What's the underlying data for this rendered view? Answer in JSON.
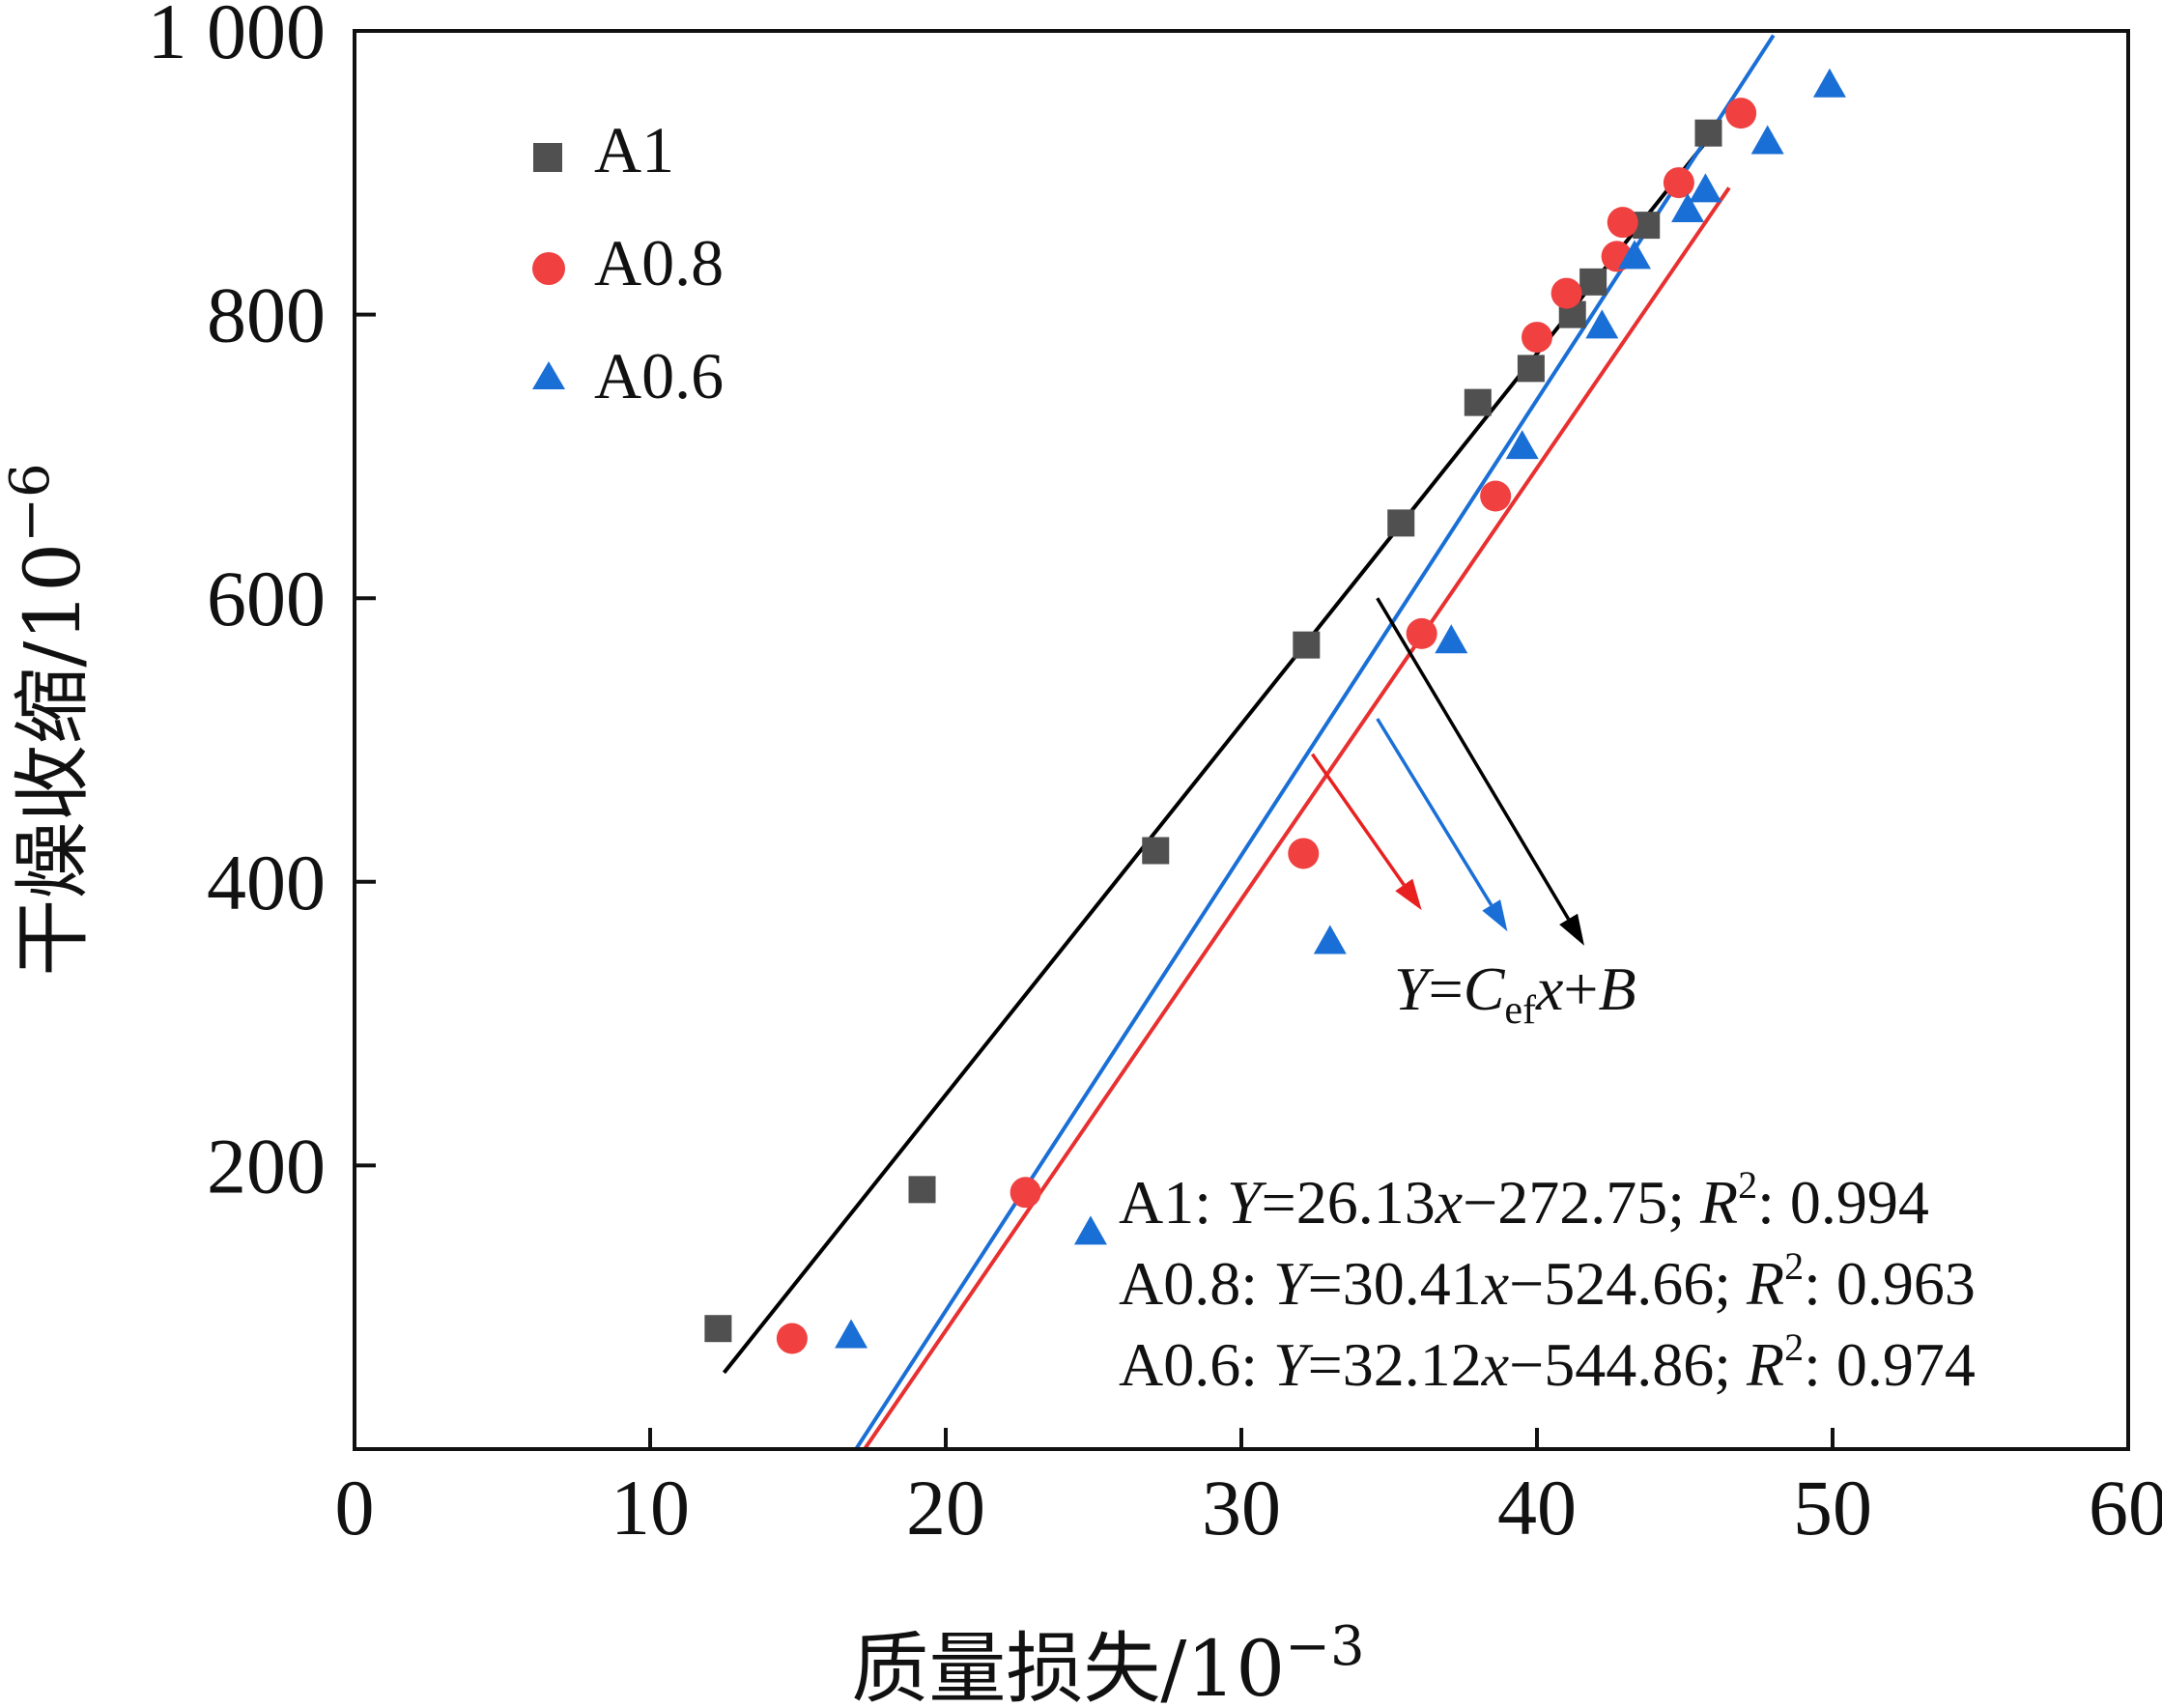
{
  "chart_data": {
    "type": "scatter",
    "xlabel": "质量损失/10",
    "xlabel_sup": "−3",
    "ylabel": "干燥收缩/10",
    "ylabel_sup": "−6",
    "xlim": [
      0,
      60
    ],
    "ylim": [
      0,
      1000
    ],
    "x_ticks": [
      0,
      10,
      20,
      30,
      40,
      50,
      60
    ],
    "x_tick_labels": [
      "0",
      "10",
      "20",
      "30",
      "40",
      "50",
      "60"
    ],
    "y_ticks": [
      200,
      400,
      600,
      800,
      1000
    ],
    "y_tick_labels": [
      "200",
      "400",
      "600",
      "800",
      "1 000"
    ],
    "grid": false,
    "legend_position": "top-left",
    "series": [
      {
        "name": "A1",
        "marker": "square",
        "color": "#505050",
        "line_color": "#000000",
        "points": [
          [
            12.3,
            85
          ],
          [
            19.2,
            183
          ],
          [
            27.1,
            422
          ],
          [
            32.2,
            567
          ],
          [
            35.4,
            653
          ],
          [
            38.0,
            738
          ],
          [
            39.8,
            762
          ],
          [
            41.2,
            800
          ],
          [
            41.9,
            823
          ],
          [
            43.7,
            863
          ],
          [
            45.8,
            928
          ]
        ],
        "fit": {
          "slope": 26.13,
          "intercept": -272.75,
          "x_range": [
            12.5,
            46.0
          ]
        }
      },
      {
        "name": "A0.8",
        "marker": "circle",
        "color": "#f04040",
        "line_color": "#e83030",
        "points": [
          [
            14.8,
            78
          ],
          [
            22.7,
            181
          ],
          [
            32.1,
            420
          ],
          [
            36.1,
            575
          ],
          [
            38.6,
            672
          ],
          [
            40.0,
            784
          ],
          [
            41.0,
            815
          ],
          [
            42.7,
            841
          ],
          [
            42.9,
            865
          ],
          [
            44.8,
            893
          ],
          [
            46.9,
            942
          ]
        ],
        "fit": {
          "slope": 30.41,
          "intercept": -524.66,
          "x_range": [
            17.25,
            46.5
          ]
        }
      },
      {
        "name": "A0.6",
        "marker": "triangle",
        "color": "#1a6fd6",
        "line_color": "#1a6fd6",
        "points": [
          [
            16.8,
            80
          ],
          [
            24.9,
            153
          ],
          [
            33.0,
            358
          ],
          [
            37.1,
            570
          ],
          [
            39.5,
            707
          ],
          [
            42.2,
            792
          ],
          [
            43.3,
            841
          ],
          [
            45.1,
            874
          ],
          [
            45.7,
            888
          ],
          [
            47.8,
            922
          ],
          [
            49.9,
            962
          ]
        ],
        "fit": {
          "slope": 32.12,
          "intercept": -544.86,
          "x_range": [
            16.96,
            48.0
          ]
        }
      }
    ],
    "annotation": {
      "equation": {
        "Y": "Y",
        "eq": "=",
        "C": "C",
        "sub": "ef",
        "x": "x",
        "plus": "+",
        "B": "B"
      },
      "arrows": [
        {
          "color": "#e82020",
          "from": [
            32.4,
            490
          ],
          "to": [
            36.1,
            380
          ]
        },
        {
          "color": "#1a6fd6",
          "from": [
            34.6,
            515
          ],
          "to": [
            39.0,
            365
          ]
        },
        {
          "color": "#000000",
          "from": [
            34.6,
            600
          ],
          "to": [
            41.6,
            355
          ]
        }
      ]
    },
    "fit_equations": [
      {
        "series": "A1",
        "prefix": "A1: ",
        "Y": "Y",
        "mid": "=26.13",
        "x": "x",
        "rest": "−272.75; ",
        "R": "R",
        "sup": "2",
        "value": ": 0.994"
      },
      {
        "series": "A0.8",
        "prefix": "A0.8: ",
        "Y": "Y",
        "mid": "=30.41",
        "x": "x",
        "rest": "−524.66; ",
        "R": "R",
        "sup": "2",
        "value": ": 0.963"
      },
      {
        "series": "A0.6",
        "prefix": "A0.6: ",
        "Y": "Y",
        "mid": "=32.12",
        "x": "x",
        "rest": "−544.86; ",
        "R": "R",
        "sup": "2",
        "value": ": 0.974"
      }
    ]
  }
}
